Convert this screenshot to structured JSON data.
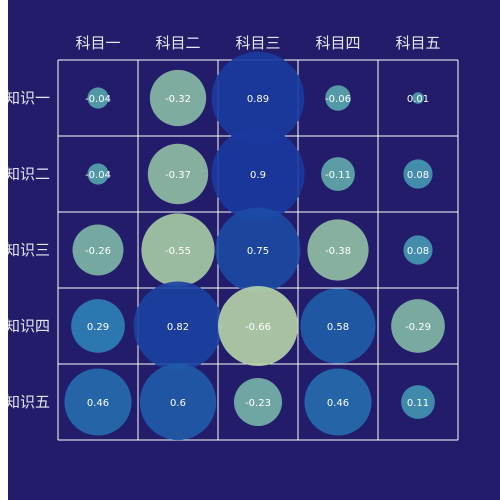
{
  "chart_data": {
    "type": "bubble-heatmap",
    "columns": [
      "科目一",
      "科目二",
      "科目三",
      "科目四",
      "科目五"
    ],
    "rows": [
      "知识一",
      "知识二",
      "知识三",
      "知识四",
      "知识五"
    ],
    "values": [
      [
        -0.04,
        -0.32,
        0.89,
        -0.06,
        0.01
      ],
      [
        -0.04,
        -0.37,
        0.9,
        -0.11,
        0.08
      ],
      [
        -0.26,
        -0.55,
        0.75,
        -0.38,
        0.08
      ],
      [
        0.29,
        0.82,
        -0.66,
        0.58,
        -0.29
      ],
      [
        0.46,
        0.6,
        -0.23,
        0.46,
        0.11
      ]
    ],
    "value_labels": [
      [
        "-0.04",
        "-0.32",
        "0.89",
        "-0.06",
        "0.01"
      ],
      [
        "-0.04",
        "-0.37",
        "0.9",
        "-0.11",
        "0.08"
      ],
      [
        "-0.26",
        "-0.55",
        "0.75",
        "-0.38",
        "0.08"
      ],
      [
        "0.29",
        "0.82",
        "-0.66",
        "0.58",
        "-0.29"
      ],
      [
        "0.46",
        "0.6",
        "-0.23",
        "0.46",
        "0.11"
      ]
    ],
    "grid": true,
    "colors": {
      "background": "#231c6a",
      "grid": "#ffffff",
      "text": "#e6e6f0",
      "scale": [
        "#bcd7a8",
        "#93c1a4",
        "#5aa8ad",
        "#2f86b9",
        "#1f5ea8",
        "#1a3aa0"
      ]
    }
  }
}
